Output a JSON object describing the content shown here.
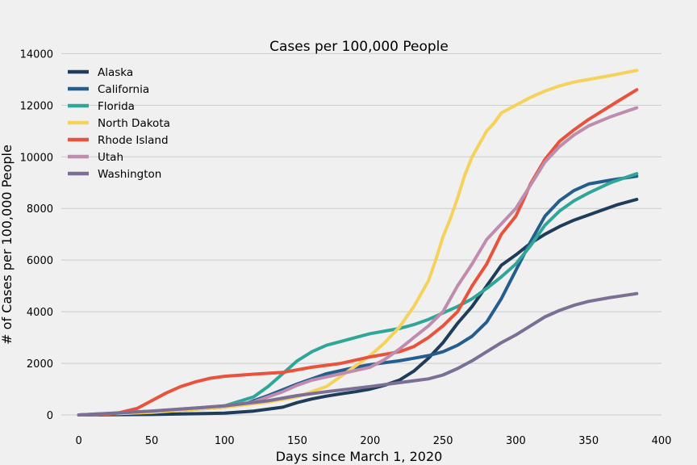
{
  "chart_data": {
    "type": "line",
    "title": "Cases per 100,000 People",
    "xlabel": "Days since March 1, 2020",
    "ylabel": "# of Cases per 100,000 People",
    "xlim": [
      -12,
      400
    ],
    "ylim": [
      -500,
      14200
    ],
    "xticks": [
      0,
      50,
      100,
      150,
      200,
      250,
      300,
      350,
      400
    ],
    "yticks": [
      0,
      2000,
      4000,
      6000,
      8000,
      10000,
      12000,
      14000
    ],
    "grid": "horizontal",
    "legend_position": "upper-left",
    "series": [
      {
        "name": "Alaska",
        "color": "#1f3d5a",
        "points": [
          [
            0,
            0
          ],
          [
            50,
            20
          ],
          [
            100,
            70
          ],
          [
            120,
            150
          ],
          [
            140,
            300
          ],
          [
            150,
            480
          ],
          [
            160,
            620
          ],
          [
            170,
            730
          ],
          [
            180,
            820
          ],
          [
            190,
            900
          ],
          [
            200,
            1000
          ],
          [
            210,
            1150
          ],
          [
            220,
            1350
          ],
          [
            230,
            1700
          ],
          [
            240,
            2200
          ],
          [
            250,
            2800
          ],
          [
            260,
            3550
          ],
          [
            270,
            4200
          ],
          [
            280,
            5000
          ],
          [
            290,
            5800
          ],
          [
            300,
            6200
          ],
          [
            310,
            6650
          ],
          [
            320,
            7000
          ],
          [
            330,
            7300
          ],
          [
            340,
            7550
          ],
          [
            350,
            7750
          ],
          [
            360,
            7950
          ],
          [
            370,
            8150
          ],
          [
            383,
            8350
          ]
        ]
      },
      {
        "name": "California",
        "color": "#235e8e",
        "points": [
          [
            0,
            0
          ],
          [
            50,
            120
          ],
          [
            75,
            200
          ],
          [
            100,
            300
          ],
          [
            115,
            450
          ],
          [
            130,
            750
          ],
          [
            150,
            1200
          ],
          [
            170,
            1600
          ],
          [
            190,
            1850
          ],
          [
            200,
            1950
          ],
          [
            220,
            2100
          ],
          [
            240,
            2300
          ],
          [
            250,
            2450
          ],
          [
            260,
            2700
          ],
          [
            270,
            3050
          ],
          [
            280,
            3600
          ],
          [
            290,
            4500
          ],
          [
            300,
            5600
          ],
          [
            310,
            6700
          ],
          [
            320,
            7700
          ],
          [
            330,
            8300
          ],
          [
            340,
            8700
          ],
          [
            350,
            8950
          ],
          [
            365,
            9100
          ],
          [
            383,
            9250
          ]
        ]
      },
      {
        "name": "Florida",
        "color": "#30a698",
        "points": [
          [
            0,
            0
          ],
          [
            50,
            100
          ],
          [
            100,
            350
          ],
          [
            120,
            700
          ],
          [
            130,
            1100
          ],
          [
            140,
            1600
          ],
          [
            150,
            2100
          ],
          [
            160,
            2450
          ],
          [
            170,
            2700
          ],
          [
            180,
            2850
          ],
          [
            190,
            3000
          ],
          [
            200,
            3150
          ],
          [
            210,
            3250
          ],
          [
            220,
            3350
          ],
          [
            230,
            3500
          ],
          [
            240,
            3700
          ],
          [
            250,
            3950
          ],
          [
            260,
            4200
          ],
          [
            270,
            4500
          ],
          [
            280,
            4900
          ],
          [
            290,
            5350
          ],
          [
            300,
            5850
          ],
          [
            310,
            6550
          ],
          [
            320,
            7350
          ],
          [
            330,
            7900
          ],
          [
            340,
            8300
          ],
          [
            350,
            8600
          ],
          [
            365,
            9000
          ],
          [
            383,
            9350
          ]
        ]
      },
      {
        "name": "North Dakota",
        "color": "#f5d25c",
        "points": [
          [
            0,
            0
          ],
          [
            50,
            100
          ],
          [
            100,
            300
          ],
          [
            130,
            500
          ],
          [
            150,
            700
          ],
          [
            170,
            1100
          ],
          [
            180,
            1500
          ],
          [
            190,
            1900
          ],
          [
            200,
            2300
          ],
          [
            210,
            2800
          ],
          [
            220,
            3400
          ],
          [
            230,
            4200
          ],
          [
            240,
            5200
          ],
          [
            245,
            6000
          ],
          [
            250,
            6900
          ],
          [
            255,
            7600
          ],
          [
            260,
            8400
          ],
          [
            265,
            9300
          ],
          [
            270,
            10000
          ],
          [
            275,
            10500
          ],
          [
            280,
            11000
          ],
          [
            285,
            11300
          ],
          [
            290,
            11700
          ],
          [
            300,
            12000
          ],
          [
            310,
            12300
          ],
          [
            320,
            12550
          ],
          [
            330,
            12750
          ],
          [
            340,
            12900
          ],
          [
            350,
            13000
          ],
          [
            365,
            13150
          ],
          [
            383,
            13350
          ]
        ]
      },
      {
        "name": "Rhode Island",
        "color": "#e7533d",
        "points": [
          [
            0,
            0
          ],
          [
            25,
            50
          ],
          [
            40,
            250
          ],
          [
            50,
            550
          ],
          [
            60,
            850
          ],
          [
            70,
            1100
          ],
          [
            80,
            1280
          ],
          [
            90,
            1420
          ],
          [
            100,
            1500
          ],
          [
            120,
            1580
          ],
          [
            140,
            1650
          ],
          [
            160,
            1850
          ],
          [
            180,
            2000
          ],
          [
            200,
            2250
          ],
          [
            220,
            2450
          ],
          [
            230,
            2650
          ],
          [
            240,
            3000
          ],
          [
            250,
            3450
          ],
          [
            260,
            4000
          ],
          [
            270,
            5000
          ],
          [
            280,
            5850
          ],
          [
            290,
            7000
          ],
          [
            300,
            7700
          ],
          [
            305,
            8300
          ],
          [
            310,
            8950
          ],
          [
            320,
            9900
          ],
          [
            330,
            10600
          ],
          [
            340,
            11050
          ],
          [
            350,
            11450
          ],
          [
            360,
            11800
          ],
          [
            370,
            12150
          ],
          [
            383,
            12600
          ]
        ]
      },
      {
        "name": "Utah",
        "color": "#bf8cae",
        "points": [
          [
            0,
            0
          ],
          [
            50,
            150
          ],
          [
            100,
            350
          ],
          [
            120,
            500
          ],
          [
            140,
            900
          ],
          [
            150,
            1150
          ],
          [
            160,
            1350
          ],
          [
            180,
            1600
          ],
          [
            200,
            1850
          ],
          [
            210,
            2150
          ],
          [
            220,
            2550
          ],
          [
            230,
            3000
          ],
          [
            240,
            3450
          ],
          [
            250,
            4000
          ],
          [
            260,
            5000
          ],
          [
            270,
            5850
          ],
          [
            280,
            6800
          ],
          [
            290,
            7400
          ],
          [
            300,
            8000
          ],
          [
            310,
            8900
          ],
          [
            320,
            9800
          ],
          [
            330,
            10400
          ],
          [
            340,
            10850
          ],
          [
            350,
            11200
          ],
          [
            365,
            11550
          ],
          [
            383,
            11900
          ]
        ]
      },
      {
        "name": "Washington",
        "color": "#7b6f96",
        "points": [
          [
            0,
            0
          ],
          [
            50,
            150
          ],
          [
            100,
            350
          ],
          [
            130,
            550
          ],
          [
            150,
            750
          ],
          [
            170,
            900
          ],
          [
            200,
            1100
          ],
          [
            220,
            1250
          ],
          [
            240,
            1400
          ],
          [
            250,
            1550
          ],
          [
            260,
            1800
          ],
          [
            270,
            2100
          ],
          [
            280,
            2450
          ],
          [
            290,
            2800
          ],
          [
            300,
            3100
          ],
          [
            310,
            3450
          ],
          [
            320,
            3800
          ],
          [
            330,
            4050
          ],
          [
            340,
            4250
          ],
          [
            350,
            4400
          ],
          [
            365,
            4550
          ],
          [
            383,
            4700
          ]
        ]
      }
    ]
  }
}
